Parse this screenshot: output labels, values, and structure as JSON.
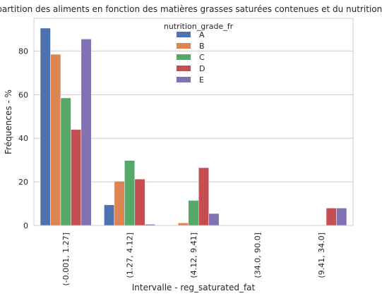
{
  "chart_data": {
    "type": "bar",
    "title": "Répartition des aliments en fonction des matières grasses saturées contenues et du nutrition grade",
    "xlabel": "Intervalle - reg_saturated_fat",
    "ylabel": "Fréquences - %",
    "ylim": [
      0,
      95
    ],
    "yticks": [
      0,
      20,
      40,
      60,
      80
    ],
    "grid": "horizontal",
    "legend_placement": "top-center",
    "legend_title": "nutrition_grade_fr",
    "categories": [
      "(-0.001, 1.27]",
      "(1.27, 4.12]",
      "(4.12, 9.41]",
      "(34.0, 90.0]",
      "(9.41, 34.0]"
    ],
    "series": [
      {
        "name": "A",
        "color": "#4c72b0",
        "values": [
          90.5,
          9.5,
          0,
          0,
          0
        ]
      },
      {
        "name": "B",
        "color": "#dd8452",
        "values": [
          78.5,
          20.3,
          1.2,
          0,
          0
        ]
      },
      {
        "name": "C",
        "color": "#55a868",
        "values": [
          58.5,
          29.8,
          11.5,
          0,
          0
        ]
      },
      {
        "name": "D",
        "color": "#c44e52",
        "values": [
          44.0,
          21.3,
          26.5,
          0,
          8.0
        ]
      },
      {
        "name": "E",
        "color": "#8172b3",
        "values": [
          85.5,
          0.6,
          5.5,
          0,
          8.0
        ]
      }
    ]
  }
}
